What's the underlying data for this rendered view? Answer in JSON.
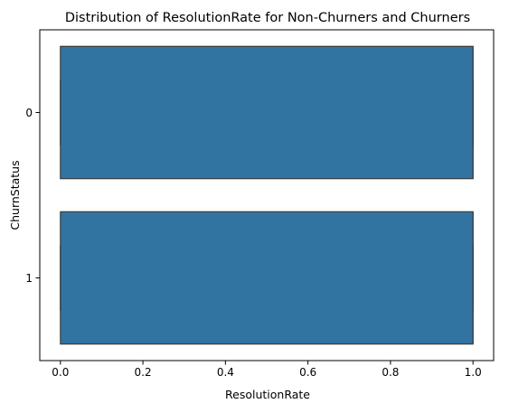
{
  "chart_data": {
    "type": "box",
    "orientation": "horizontal",
    "title": "Distribution of ResolutionRate for Non-Churners and Churners",
    "xlabel": "ResolutionRate",
    "ylabel": "ChurnStatus",
    "xlim": [
      -0.05,
      1.05
    ],
    "xticks": [
      0.0,
      0.2,
      0.4,
      0.6,
      0.8,
      1.0
    ],
    "xtick_labels": [
      "0.0",
      "0.2",
      "0.4",
      "0.6",
      "0.8",
      "1.0"
    ],
    "categories": [
      "0",
      "1"
    ],
    "boxes": [
      {
        "category": "0",
        "whisker_low": 0.0,
        "q1": 0.0,
        "median": 1.0,
        "q3": 1.0,
        "whisker_high": 1.0
      },
      {
        "category": "1",
        "whisker_low": 0.0,
        "q1": 0.0,
        "median": 1.0,
        "q3": 1.0,
        "whisker_high": 1.0
      }
    ],
    "box_color": "#3274a1",
    "edge_color": "#3d3d3d",
    "grid": false,
    "legend": "none"
  }
}
